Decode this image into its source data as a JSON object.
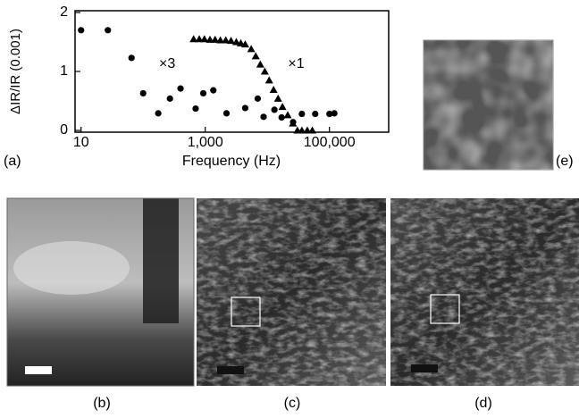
{
  "chart_data": {
    "type": "scatter",
    "x_label": "Frequency (Hz)",
    "y_label": "ΔIR/IR (0.001)",
    "xscale": "log",
    "xlim": [
      8,
      900000
    ],
    "xticks": [
      10,
      {
        "value": 1000,
        "label": "1,000"
      },
      {
        "value": 100000,
        "label": "100,000"
      }
    ],
    "ylim": [
      0,
      2
    ],
    "yticks": [
      0,
      1,
      2
    ],
    "grid": false,
    "series": [
      {
        "name": "×3",
        "color": "#000000",
        "marker": "circle",
        "x": [
          10,
          27,
          65,
          100,
          175,
          270,
          400,
          700,
          930,
          1350,
          2200,
          4400,
          7000,
          8700,
          13000,
          17000,
          26000,
          36000,
          59000,
          100000,
          120000
        ],
        "values": [
          1.7,
          1.7,
          1.23,
          0.63,
          0.29,
          0.54,
          0.71,
          0.37,
          0.63,
          0.68,
          0.29,
          0.38,
          0.54,
          0.23,
          0.35,
          0.22,
          0.14,
          0.28,
          0.28,
          0.28,
          0.29
        ]
      },
      {
        "name": "×1",
        "color": "#000000",
        "marker": "triangle",
        "x": [
          650,
          800,
          970,
          1190,
          1440,
          1750,
          2140,
          2600,
          3160,
          3740,
          4400,
          5500,
          6500,
          7700,
          9100,
          10700,
          12600,
          14900,
          17500,
          21300,
          25800,
          30500,
          36000,
          44000,
          53000
        ],
        "values": [
          1.55,
          1.55,
          1.55,
          1.54,
          1.54,
          1.53,
          1.53,
          1.52,
          1.5,
          1.48,
          1.46,
          1.38,
          1.26,
          1.12,
          1.0,
          0.85,
          0.69,
          0.54,
          0.4,
          0.26,
          0.12,
          0,
          0,
          0,
          0
        ]
      }
    ]
  },
  "panels": {
    "a": "(a)",
    "b": "(b)",
    "c": "(c)",
    "d": "(d)",
    "e": "(e)"
  }
}
